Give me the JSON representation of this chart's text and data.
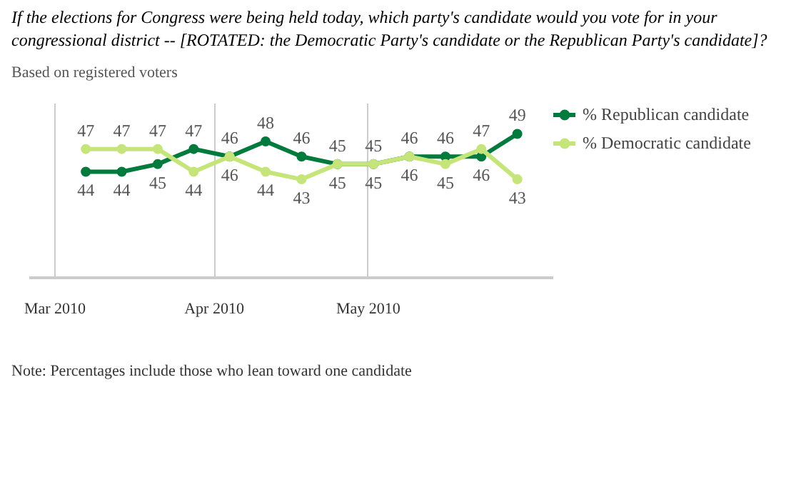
{
  "chart_data": {
    "type": "line",
    "title": "If the elections for Congress were being held today, which party's candidate would you vote for in your congressional district -- [ROTATED: the Democratic Party's candidate or the Republican Party's candidate]?",
    "subtitle": "Based on registered voters",
    "x": [
      "2010-03-07",
      "2010-03-14",
      "2010-03-21",
      "2010-03-28",
      "2010-04-04",
      "2010-04-11",
      "2010-04-18",
      "2010-04-25",
      "2010-05-02",
      "2010-05-09",
      "2010-05-16",
      "2010-05-23",
      "2010-05-30"
    ],
    "series": [
      {
        "name": "% Republican candidate",
        "color": "#007a3d",
        "values": [
          44,
          44,
          45,
          47,
          46,
          48,
          46,
          45,
          45,
          46,
          46,
          46,
          49
        ]
      },
      {
        "name": "% Democratic candidate",
        "color": "#c5e57a",
        "values": [
          47,
          47,
          47,
          44,
          46,
          44,
          43,
          45,
          45,
          46,
          45,
          47,
          43
        ]
      }
    ],
    "xlim": [
      "2010-02-24",
      "2010-06-06"
    ],
    "ylim": [
      30,
      53
    ],
    "xticks": [
      {
        "value": "2010-03-01",
        "label": "Mar 2010"
      },
      {
        "value": "2010-04-01",
        "label": "Apr 2010"
      },
      {
        "value": "2010-05-01",
        "label": "May 2010"
      }
    ],
    "tick_labels": "x",
    "grid": "x",
    "legend": "right",
    "marker": "circle",
    "line_style": "solid",
    "data_labels": true,
    "annotations": [
      "Note: Percentages include those who lean toward one candidate"
    ]
  }
}
